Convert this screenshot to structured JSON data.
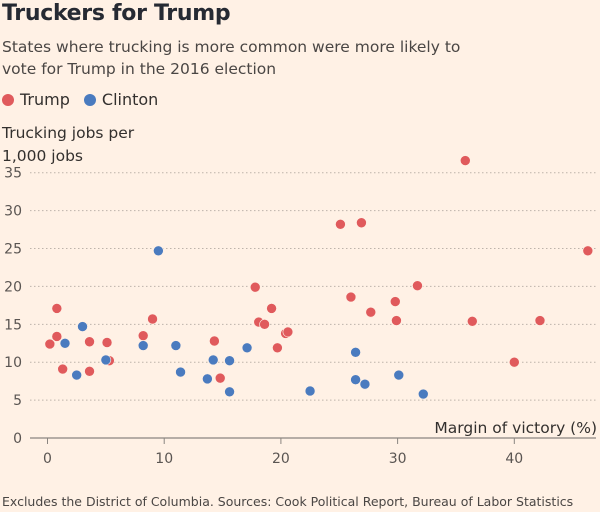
{
  "header": {
    "title": "Truckers for Trump",
    "subtitle": "States where trucking is more common were more likely to vote for Trump in the 2016 election"
  },
  "legend": {
    "items": [
      {
        "label": "Trump",
        "color": "#e05a5c"
      },
      {
        "label": "Clinton",
        "color": "#4a7bbf"
      }
    ]
  },
  "footer": {
    "note": "Excludes the District of Columbia. Sources: Cook Political Report, Bureau of Labor Statistics"
  },
  "chart_data": {
    "type": "scatter",
    "title": "Truckers for Trump",
    "subtitle": "States where trucking is more common were more likely to vote for Trump in the 2016 election",
    "xlabel": "Margin of victory (%)",
    "ylabel": "Trucking jobs per 1,000 jobs",
    "xlim": [
      -1.5,
      47
    ],
    "ylim": [
      0,
      38
    ],
    "xticks": [
      0,
      10,
      20,
      30,
      40
    ],
    "yticks": [
      0,
      5,
      10,
      15,
      20,
      25,
      30,
      35
    ],
    "grid": "horizontal dotted",
    "legend_position": "top-left",
    "series": [
      {
        "name": "Trump",
        "color": "#e05a5c",
        "points": [
          {
            "x": 0.2,
            "y": 12.4
          },
          {
            "x": 0.8,
            "y": 17.1
          },
          {
            "x": 0.8,
            "y": 13.4
          },
          {
            "x": 1.3,
            "y": 9.1
          },
          {
            "x": 3.6,
            "y": 12.7
          },
          {
            "x": 3.6,
            "y": 8.8
          },
          {
            "x": 5.1,
            "y": 12.6
          },
          {
            "x": 5.3,
            "y": 10.2
          },
          {
            "x": 8.2,
            "y": 13.5
          },
          {
            "x": 9.0,
            "y": 15.7
          },
          {
            "x": 14.3,
            "y": 12.8
          },
          {
            "x": 14.8,
            "y": 7.9
          },
          {
            "x": 17.8,
            "y": 19.9
          },
          {
            "x": 18.1,
            "y": 15.3
          },
          {
            "x": 18.6,
            "y": 15.0
          },
          {
            "x": 19.2,
            "y": 17.1
          },
          {
            "x": 19.7,
            "y": 11.9
          },
          {
            "x": 20.4,
            "y": 13.8
          },
          {
            "x": 20.6,
            "y": 14.0
          },
          {
            "x": 25.1,
            "y": 28.2
          },
          {
            "x": 26.0,
            "y": 18.6
          },
          {
            "x": 26.9,
            "y": 28.4
          },
          {
            "x": 27.7,
            "y": 16.6
          },
          {
            "x": 29.8,
            "y": 18.0
          },
          {
            "x": 29.9,
            "y": 15.5
          },
          {
            "x": 31.7,
            "y": 20.1
          },
          {
            "x": 35.8,
            "y": 36.6
          },
          {
            "x": 36.4,
            "y": 15.4
          },
          {
            "x": 40.0,
            "y": 10.0
          },
          {
            "x": 42.2,
            "y": 15.5
          },
          {
            "x": 46.3,
            "y": 24.7
          }
        ]
      },
      {
        "name": "Clinton",
        "color": "#4a7bbf",
        "points": [
          {
            "x": 1.5,
            "y": 12.5
          },
          {
            "x": 2.5,
            "y": 8.3
          },
          {
            "x": 3.0,
            "y": 14.7
          },
          {
            "x": 5.0,
            "y": 10.3
          },
          {
            "x": 8.2,
            "y": 12.2
          },
          {
            "x": 9.5,
            "y": 24.7
          },
          {
            "x": 11.0,
            "y": 12.2
          },
          {
            "x": 11.4,
            "y": 8.7
          },
          {
            "x": 13.7,
            "y": 7.8
          },
          {
            "x": 14.2,
            "y": 10.3
          },
          {
            "x": 15.6,
            "y": 10.2
          },
          {
            "x": 15.6,
            "y": 6.1
          },
          {
            "x": 17.1,
            "y": 11.9
          },
          {
            "x": 22.5,
            "y": 6.2
          },
          {
            "x": 26.4,
            "y": 11.3
          },
          {
            "x": 26.4,
            "y": 7.7
          },
          {
            "x": 27.2,
            "y": 7.1
          },
          {
            "x": 30.1,
            "y": 8.3
          },
          {
            "x": 32.2,
            "y": 5.8
          }
        ]
      }
    ]
  }
}
